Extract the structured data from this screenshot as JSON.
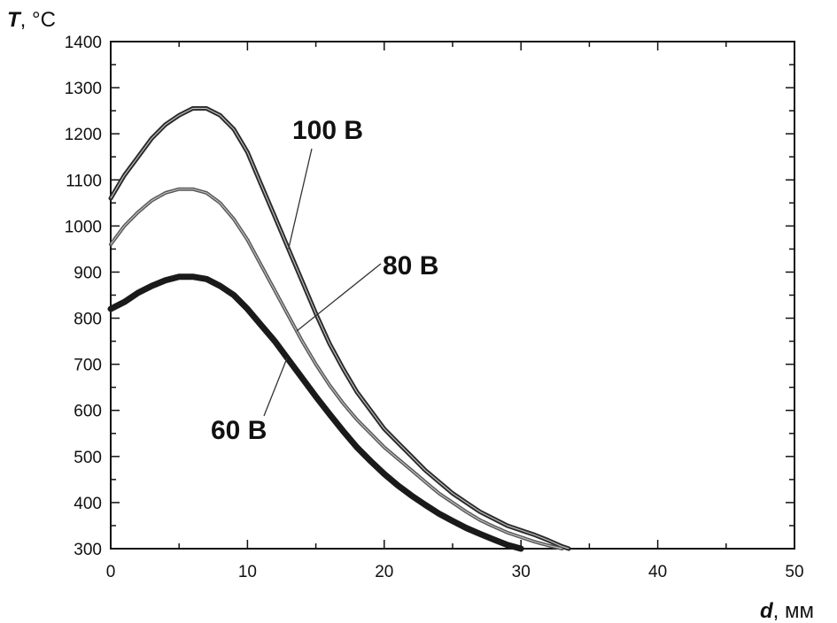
{
  "chart_data": {
    "type": "line",
    "title": "",
    "xlabel": {
      "symbol": "d",
      "unit": ", мм"
    },
    "ylabel": {
      "symbol": "T",
      "unit": ", °C"
    },
    "xlim": [
      0,
      50
    ],
    "ylim": [
      300,
      1400
    ],
    "x_ticks": [
      0,
      10,
      20,
      30,
      40,
      50
    ],
    "y_ticks": [
      300,
      400,
      500,
      600,
      700,
      800,
      900,
      1000,
      1100,
      1200,
      1300,
      1400
    ],
    "grid": false,
    "legend": "none",
    "series": [
      {
        "name": "100 B",
        "color": "#2a2a2a",
        "x": [
          0,
          1,
          2,
          3,
          4,
          5,
          6,
          7,
          8,
          9,
          10,
          11,
          12,
          13,
          14,
          15,
          16,
          17,
          18,
          19,
          20,
          21,
          22,
          23,
          24,
          25,
          26,
          27,
          28,
          29,
          30,
          31,
          32,
          33,
          33.5
        ],
        "y": [
          1060,
          1110,
          1150,
          1190,
          1220,
          1240,
          1255,
          1255,
          1240,
          1210,
          1160,
          1090,
          1020,
          950,
          880,
          810,
          745,
          690,
          640,
          600,
          560,
          530,
          500,
          470,
          445,
          420,
          400,
          380,
          365,
          350,
          340,
          330,
          318,
          305,
          300
        ]
      },
      {
        "name": "80 B",
        "color": "#555555",
        "x": [
          0,
          1,
          2,
          3,
          4,
          5,
          6,
          7,
          8,
          9,
          10,
          11,
          12,
          13,
          14,
          15,
          16,
          17,
          18,
          19,
          20,
          21,
          22,
          23,
          24,
          25,
          26,
          27,
          28,
          29,
          30,
          31,
          32,
          33
        ],
        "y": [
          960,
          1000,
          1030,
          1055,
          1072,
          1080,
          1080,
          1072,
          1050,
          1015,
          970,
          915,
          860,
          805,
          750,
          700,
          655,
          615,
          580,
          550,
          520,
          495,
          470,
          445,
          420,
          400,
          380,
          362,
          348,
          335,
          325,
          315,
          307,
          300
        ]
      },
      {
        "name": "60 B",
        "color": "#1a1a1a",
        "x": [
          0,
          1,
          2,
          3,
          4,
          5,
          6,
          7,
          8,
          9,
          10,
          11,
          12,
          13,
          14,
          15,
          16,
          17,
          18,
          19,
          20,
          21,
          22,
          23,
          24,
          25,
          26,
          27,
          28,
          29,
          30
        ],
        "y": [
          820,
          835,
          855,
          870,
          882,
          890,
          890,
          885,
          870,
          850,
          820,
          785,
          750,
          710,
          670,
          630,
          592,
          555,
          520,
          490,
          462,
          437,
          415,
          395,
          376,
          360,
          345,
          332,
          320,
          308,
          300
        ]
      }
    ],
    "annotations": [
      {
        "text": "100 B",
        "series": "100 B"
      },
      {
        "text": "80 B",
        "series": "80 B"
      },
      {
        "text": "60 B",
        "series": "60 B"
      }
    ]
  }
}
